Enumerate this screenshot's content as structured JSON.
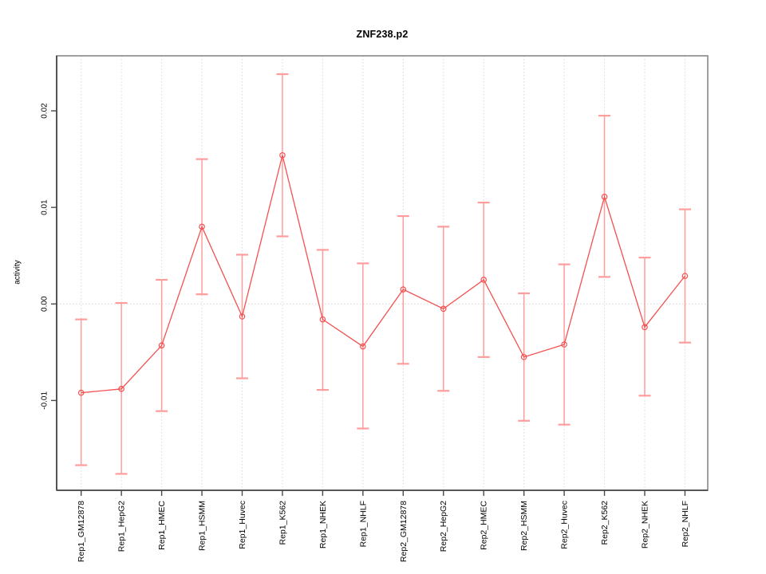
{
  "figure": {
    "title": "ZNF238.p2",
    "ylabel": "activity"
  },
  "chart_data": {
    "type": "line",
    "title": "ZNF238.p2",
    "xlabel": "",
    "ylabel": "activity",
    "categories": [
      "Rep1_GM12878",
      "Rep1_HepG2",
      "Rep1_HMEC",
      "Rep1_HSMM",
      "Rep1_Huvec",
      "Rep1_K562",
      "Rep1_NHEK",
      "Rep1_NHLF",
      "Rep2_GM12878",
      "Rep2_HepG2",
      "Rep2_HMEC",
      "Rep2_HSMM",
      "Rep2_Huvec",
      "Rep2_K562",
      "Rep2_NHEK",
      "Rep2_NHLF"
    ],
    "series": [
      {
        "name": "activity",
        "values": [
          -0.0092,
          -0.0088,
          -0.0043,
          0.008,
          -0.0013,
          0.0154,
          -0.0016,
          -0.0044,
          0.0015,
          -0.0005,
          0.0025,
          -0.0055,
          -0.0042,
          0.0111,
          -0.0024,
          0.0029
        ],
        "error_low": [
          -0.0167,
          -0.0176,
          -0.0111,
          0.001,
          -0.0077,
          0.007,
          -0.0089,
          -0.0129,
          -0.0062,
          -0.009,
          -0.0055,
          -0.0121,
          -0.0125,
          0.0028,
          -0.0095,
          -0.004
        ],
        "error_high": [
          -0.0016,
          0.0001,
          0.0025,
          0.015,
          0.0051,
          0.0238,
          0.0056,
          0.0042,
          0.0091,
          0.008,
          0.0105,
          0.0011,
          0.0041,
          0.0195,
          0.0048,
          0.0098
        ]
      }
    ],
    "yticks": [
      -0.01,
      0.0,
      0.01,
      0.02
    ],
    "ytick_labels": [
      "-0.01",
      "0.00",
      "0.01",
      "0.02"
    ],
    "ylim": [
      -0.0193,
      0.0257
    ],
    "grid": {
      "vertical_gridlines": true,
      "horizontal_zero_line": true,
      "legend": "none"
    },
    "colors": {
      "line": "#f35151",
      "point": "#f35151",
      "error_bar": "#ff9c9c",
      "grid": "#d8d8d8",
      "box": "#959595",
      "axis": "#4a4a4a",
      "text": "#000000",
      "background": "#ffffff"
    }
  }
}
